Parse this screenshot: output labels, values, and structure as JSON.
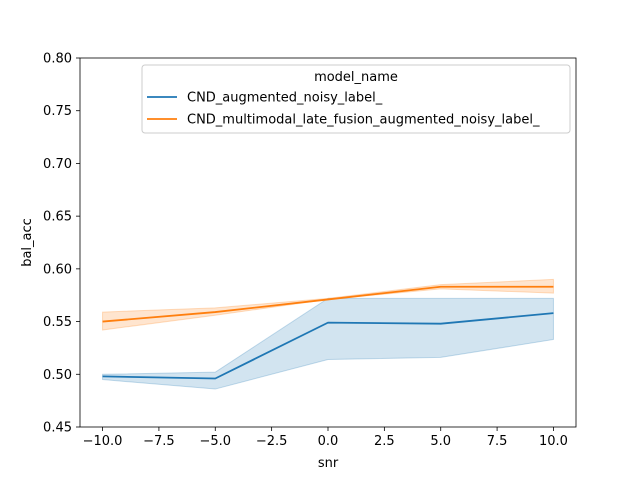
{
  "chart_data": {
    "type": "line",
    "title": "",
    "xlabel": "snr",
    "ylabel": "bal_acc",
    "xlim": [
      -11,
      11
    ],
    "ylim": [
      0.45,
      0.8
    ],
    "x_ticks": [
      -10.0,
      -7.5,
      -5.0,
      -2.5,
      0.0,
      2.5,
      5.0,
      7.5,
      10.0
    ],
    "x_tick_labels": [
      "−10.0",
      "−7.5",
      "−5.0",
      "−2.5",
      "0.0",
      "2.5",
      "5.0",
      "7.5",
      "10.0"
    ],
    "y_ticks": [
      0.45,
      0.5,
      0.55,
      0.6,
      0.65,
      0.7,
      0.75,
      0.8
    ],
    "y_tick_labels": [
      "0.45",
      "0.50",
      "0.55",
      "0.60",
      "0.65",
      "0.70",
      "0.75",
      "0.80"
    ],
    "grid": false,
    "legend_title": "model_name",
    "legend_position": "top-center",
    "x": [
      -10,
      -5,
      0,
      5,
      10
    ],
    "series": [
      {
        "name": "CND_augmented_noisy_label_",
        "color": "#1f77b4",
        "values": [
          0.498,
          0.496,
          0.549,
          0.548,
          0.558
        ],
        "lower": [
          0.495,
          0.486,
          0.514,
          0.516,
          0.533
        ],
        "upper": [
          0.5,
          0.502,
          0.572,
          0.572,
          0.572
        ]
      },
      {
        "name": "CND_multimodal_late_fusion_augmented_noisy_label_",
        "color": "#ff7f0e",
        "values": [
          0.55,
          0.559,
          0.571,
          0.583,
          0.583
        ],
        "lower": [
          0.542,
          0.556,
          0.571,
          0.581,
          0.577
        ],
        "upper": [
          0.559,
          0.563,
          0.572,
          0.585,
          0.59
        ]
      }
    ]
  }
}
